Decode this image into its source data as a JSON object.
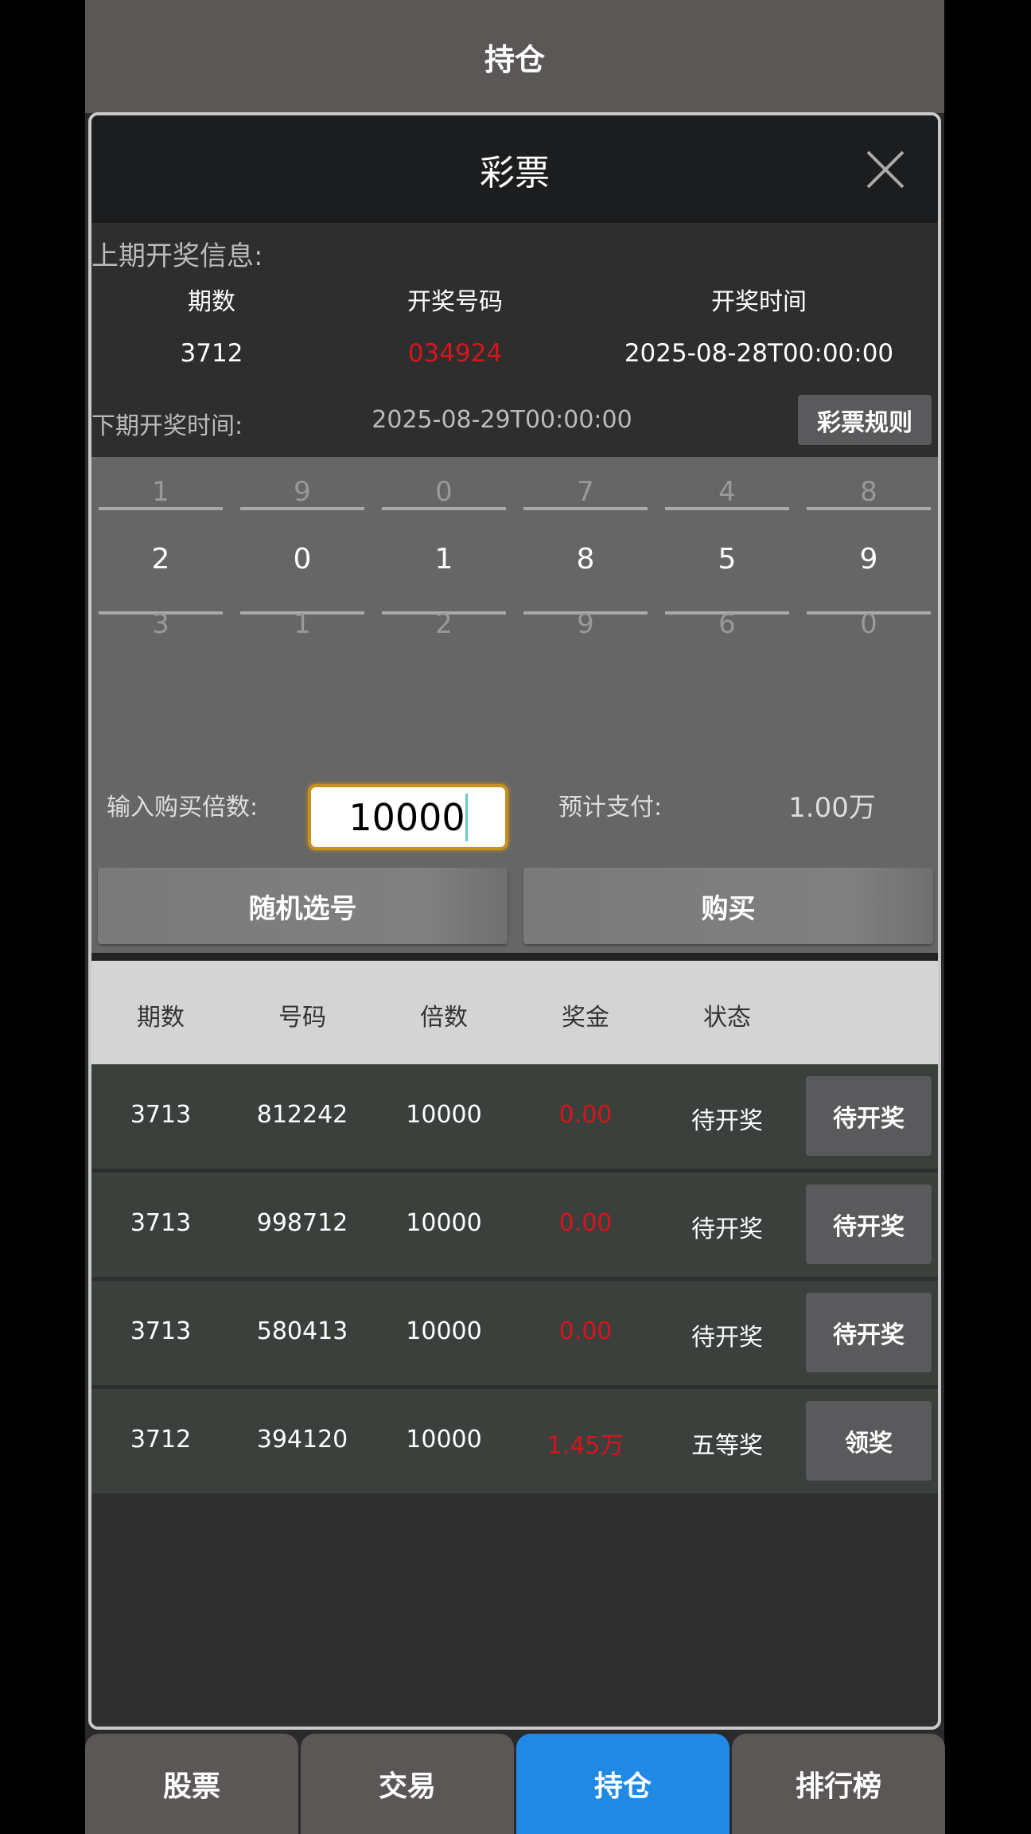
{
  "header": {
    "title": "持仓"
  },
  "modal": {
    "title": "彩票",
    "close_icon": "close-icon",
    "last_draw": {
      "label": "上期开奖信息:",
      "headers": [
        "期数",
        "开奖号码",
        "开奖时间"
      ],
      "period": "3712",
      "number": "034924",
      "time": "2025-08-28T00:00:00"
    },
    "next_draw": {
      "label": "下期开奖时间:",
      "time": "2025-08-29T00:00:00"
    },
    "rules_button": "彩票规则",
    "picker": {
      "above": [
        "1",
        "9",
        "0",
        "7",
        "4",
        "8"
      ],
      "selected": [
        "2",
        "0",
        "1",
        "8",
        "5",
        "9"
      ],
      "below": [
        "3",
        "1",
        "2",
        "9",
        "6",
        "0"
      ]
    },
    "multiplier": {
      "label": "输入购买倍数:",
      "value": "10000"
    },
    "estimated": {
      "label": "预计支付:",
      "value": "1.00万"
    },
    "random_button": "随机选号",
    "buy_button": "购买",
    "table": {
      "headers": [
        "期数",
        "号码",
        "倍数",
        "奖金",
        "状态"
      ],
      "rows": [
        {
          "period": "3713",
          "number": "812242",
          "multiple": "10000",
          "prize": "0.00",
          "status": "待开奖",
          "action": "待开奖"
        },
        {
          "period": "3713",
          "number": "998712",
          "multiple": "10000",
          "prize": "0.00",
          "status": "待开奖",
          "action": "待开奖"
        },
        {
          "period": "3713",
          "number": "580413",
          "multiple": "10000",
          "prize": "0.00",
          "status": "待开奖",
          "action": "待开奖"
        },
        {
          "period": "3712",
          "number": "394120",
          "multiple": "10000",
          "prize": "1.45万",
          "status": "五等奖",
          "action": "领奖"
        }
      ]
    }
  },
  "nav": {
    "items": [
      {
        "label": "股票"
      },
      {
        "label": "交易"
      },
      {
        "label": "持仓",
        "active": true
      },
      {
        "label": "排行榜"
      }
    ]
  },
  "colors": {
    "accent": "#1f89e3",
    "prize_red": "#d8141b",
    "input_border": "#c8911e"
  }
}
